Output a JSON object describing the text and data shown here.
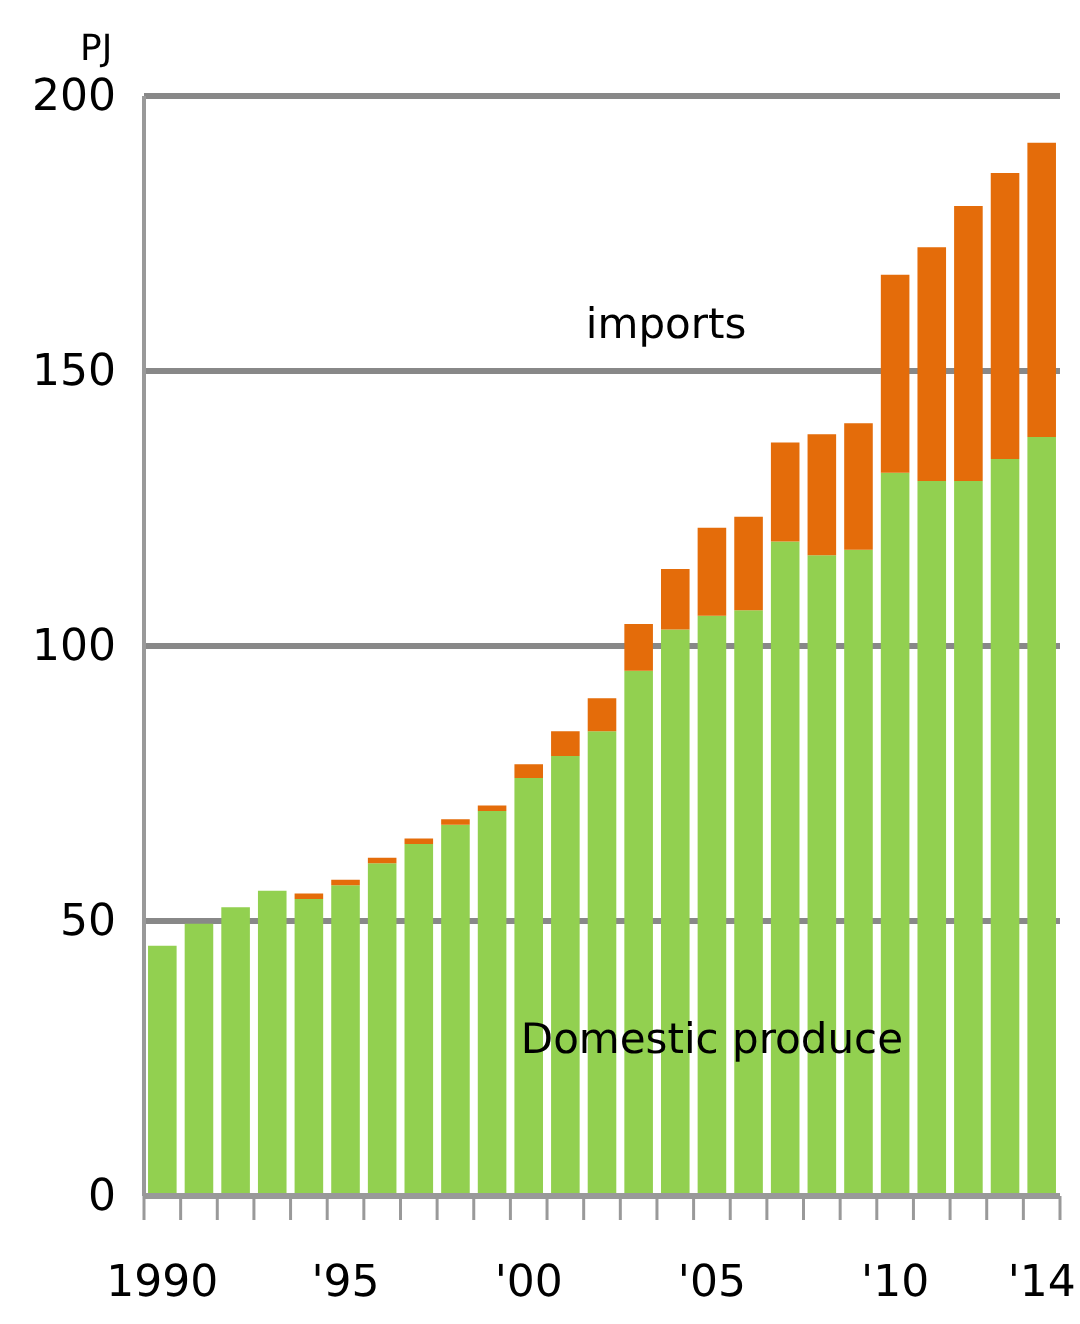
{
  "chart_data": {
    "type": "bar",
    "stacked": true,
    "ylabel": "PJ",
    "categories": [
      "1990",
      null,
      null,
      null,
      null,
      "'95",
      null,
      null,
      null,
      null,
      "'00",
      null,
      null,
      null,
      null,
      "'05",
      null,
      null,
      null,
      null,
      "'10",
      null,
      null,
      null,
      "'14"
    ],
    "series": [
      {
        "name": "Domestic produce",
        "color": "#92d050",
        "values": [
          45.5,
          49.5,
          52.5,
          55.5,
          54,
          56.5,
          60.5,
          64,
          67.5,
          70,
          76,
          80,
          84.5,
          95.5,
          103,
          105.5,
          106.5,
          119,
          116.5,
          117.5,
          131.5,
          130,
          130,
          134,
          138
        ]
      },
      {
        "name": "imports",
        "color": "#e46c0a",
        "values": [
          0,
          0,
          0,
          0,
          1,
          1,
          1,
          1,
          1,
          1,
          2.5,
          4.5,
          6,
          8.5,
          11,
          16,
          17,
          18,
          22,
          23,
          36,
          42.5,
          50,
          52,
          53.5
        ]
      }
    ],
    "ylim": [
      0,
      200
    ],
    "yticks": [
      0,
      50,
      100,
      150,
      200
    ],
    "grid": "y",
    "legend": false
  }
}
